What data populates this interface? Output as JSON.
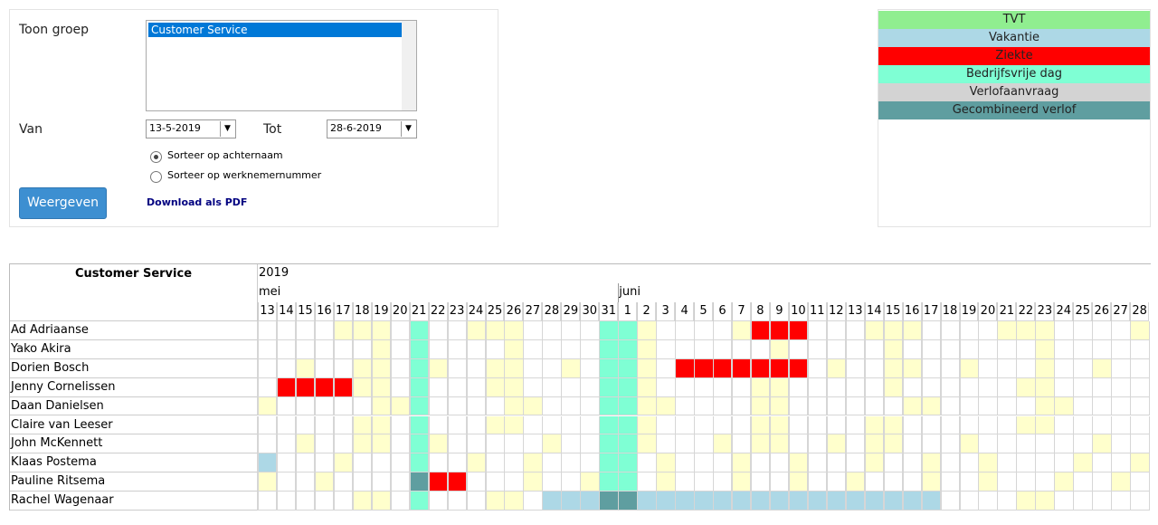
{
  "filter": {
    "group_label": "Toon groep",
    "group_options": [
      "Customer Service"
    ],
    "from_label": "Van",
    "from_value": "13-5-2019",
    "to_label": "Tot",
    "to_value": "28-6-2019",
    "sort_options": [
      "Sorteer op achternaam",
      "Sorteer op werknemernummer"
    ],
    "button": "Weergeven",
    "pdf_link": "Download als PDF"
  },
  "legend": [
    {
      "label": "TVT",
      "color": "#90ee90"
    },
    {
      "label": "Vakantie",
      "color": "#add8e6"
    },
    {
      "label": "Ziekte",
      "color": "#ff0000"
    },
    {
      "label": "Bedrijfsvrije dag",
      "color": "#7fffd4"
    },
    {
      "label": "Verlofaanvraag",
      "color": "#d3d3d3"
    },
    {
      "label": "Gecombineerd verlof",
      "color": "#5f9ea0"
    }
  ],
  "schedule": {
    "group": "Customer Service",
    "year": "2019",
    "months": [
      {
        "label": "mei",
        "days": [
          13,
          14,
          15,
          16,
          17,
          18,
          19,
          20,
          21,
          22,
          23,
          24,
          25,
          26,
          27,
          28,
          29,
          30,
          31
        ]
      },
      {
        "label": "juni",
        "days": [
          1,
          2,
          3,
          4,
          5,
          6,
          7,
          8,
          9,
          10,
          11,
          12,
          13,
          14,
          15,
          16,
          17,
          18,
          19,
          20,
          21,
          22,
          23,
          24,
          25,
          26,
          27,
          28
        ]
      }
    ],
    "cell_colors": {
      "y": "#ffffcc",
      "r": "#ff0000",
      "a": "#7fffd4",
      "b": "#add8e6",
      "t": "#5f9ea0"
    },
    "employees": [
      {
        "name": "Ad Adriaanse",
        "cells": "....yyy.a..yyy....aay....yrrr...yyy....yyy....y"
      },
      {
        "name": "Yako Akira",
        "cells": "......y.a....y....aay......y.....y.......y....."
      },
      {
        "name": "Dorien Bosch",
        "cells": "..y..yy.ay..yy..y.aay.rrrrrrr.y..yy..y...y..y.."
      },
      {
        "name": "Jenny Cornelissen",
        "cells": ".rrrryy.a...yy....aay.....yy.....y......yy....."
      },
      {
        "name": "Daan Danielsen",
        "cells": "y.....yya....yy...aayy....yy......yy.....yy...."
      },
      {
        "name": "Claire van Leeser",
        "cells": ".....yy.a...yy....aay.....yy....yy......yy....."
      },
      {
        "name": "John McKennett",
        "cells": "..y..yy.ay.....y..aay...y.yy..y.yy...y......y.."
      },
      {
        "name": "Klaas Postema",
        "cells": "b...y...a..y..y...aa.y...y..y...y..y..y....y..y"
      },
      {
        "name": "Pauline Ritsema",
        "cells": "y..y....trr...y..yaa.y...y..y..y...y..y...y..y."
      },
      {
        "name": "Rachel Wagenaar",
        "cells": ".....yy.a...yy.bbbttbbbbbbbbbbbbbbbb....yy....."
      }
    ]
  }
}
